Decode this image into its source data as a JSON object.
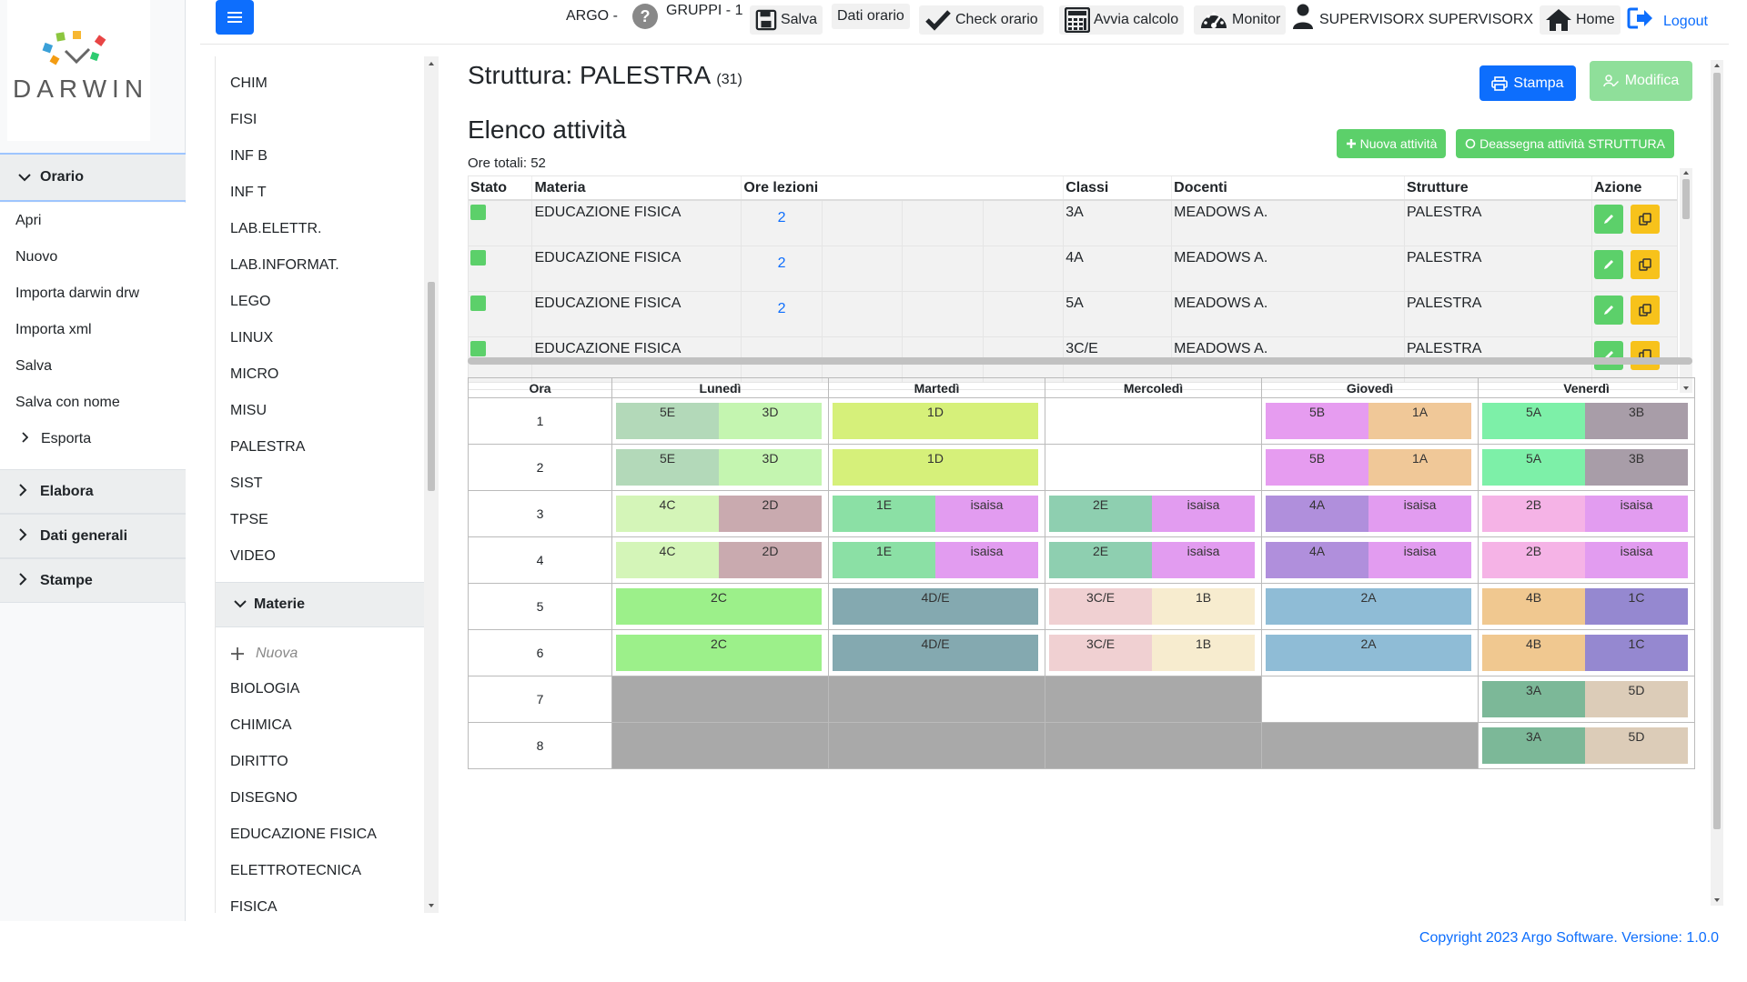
{
  "logo": {
    "text": "DARWIN"
  },
  "sidebar": {
    "sections": [
      {
        "label": "Orario",
        "expanded": true
      },
      {
        "label": "Elabora",
        "expanded": false
      },
      {
        "label": "Dati generali",
        "expanded": false
      },
      {
        "label": "Stampe",
        "expanded": false
      }
    ],
    "orario_items": [
      "Apri",
      "Nuovo",
      "Importa darwin drw",
      "Importa xml",
      "Salva",
      "Salva con nome",
      "Esporta"
    ]
  },
  "topbar": {
    "argo": "ARGO -",
    "gruppi": "GRUPPI - 1",
    "salva": "Salva",
    "dati_orario": "Dati orario",
    "check_orario": "Check orario",
    "avvia_calcolo": "Avvia calcolo",
    "monitor": "Monitor",
    "user": "SUPERVISORX SUPERVISORX",
    "home": "Home",
    "logout": "Logout"
  },
  "strutture_list": [
    "CHIM",
    "FISI",
    "INF B",
    "INF T",
    "LAB.ELETTR.",
    "LAB.INFORMAT.",
    "LEGO",
    "LINUX",
    "MICRO",
    "MISU",
    "PALESTRA",
    "SIST",
    "TPSE",
    "VIDEO"
  ],
  "materie": {
    "header": "Materie",
    "new_label": "Nuova",
    "items": [
      "BIOLOGIA",
      "CHIMICA",
      "DIRITTO",
      "DISEGNO",
      "EDUCAZIONE FISICA",
      "ELETTROTECNICA",
      "FISICA"
    ]
  },
  "main": {
    "title": "Struttura: PALESTRA",
    "title_count": "(31)",
    "stampa": "Stampa",
    "modifica": "Modifica",
    "section_title": "Elenco attività",
    "nuova_attivita": "Nuova attività",
    "deassegna": "Deassegna attività STRUTTURA",
    "ore_totali": "Ore totali: 52"
  },
  "activities": {
    "headers": [
      "Stato",
      "Materia",
      "Ore lezioni",
      "Classi",
      "Docenti",
      "Strutture",
      "Azione"
    ],
    "rows": [
      {
        "materia": "EDUCAZIONE FISICA",
        "ore": "2",
        "classi": "3A",
        "docenti": "MEADOWS A.",
        "strutture": "PALESTRA"
      },
      {
        "materia": "EDUCAZIONE FISICA",
        "ore": "2",
        "classi": "4A",
        "docenti": "MEADOWS A.",
        "strutture": "PALESTRA"
      },
      {
        "materia": "EDUCAZIONE FISICA",
        "ore": "2",
        "classi": "5A",
        "docenti": "MEADOWS A.",
        "strutture": "PALESTRA"
      },
      {
        "materia": "EDUCAZIONE FISICA",
        "ore": "",
        "classi": "3C/E",
        "docenti": "MEADOWS A.",
        "strutture": "PALESTRA"
      }
    ]
  },
  "schedule": {
    "ora_header": "Ora",
    "days": [
      "Lunedì",
      "Martedì",
      "Mercoledì",
      "Giovedì",
      "Venerdì"
    ],
    "rows": [
      {
        "ora": "1",
        "cells": [
          {
            "blocks": [
              {
                "label": "5E",
                "color": "#b3d9b9"
              },
              {
                "label": "3D",
                "color": "#c4f5b0"
              }
            ]
          },
          {
            "blocks": [
              {
                "label": "1D",
                "color": "#d6f07a"
              }
            ]
          },
          {
            "blocks": []
          },
          {
            "blocks": [
              {
                "label": "5B",
                "color": "#e69cf0"
              },
              {
                "label": "1A",
                "color": "#f0c898"
              }
            ]
          },
          {
            "blocks": [
              {
                "label": "5A",
                "color": "#7df0a8"
              },
              {
                "label": "3B",
                "color": "#a89da8"
              }
            ]
          }
        ]
      },
      {
        "ora": "2",
        "cells": [
          {
            "blocks": [
              {
                "label": "5E",
                "color": "#b3d9b9"
              },
              {
                "label": "3D",
                "color": "#c4f5b0"
              }
            ]
          },
          {
            "blocks": [
              {
                "label": "1D",
                "color": "#d6f07a"
              }
            ]
          },
          {
            "blocks": []
          },
          {
            "blocks": [
              {
                "label": "5B",
                "color": "#e69cf0"
              },
              {
                "label": "1A",
                "color": "#f0c898"
              }
            ]
          },
          {
            "blocks": [
              {
                "label": "5A",
                "color": "#7df0a8"
              },
              {
                "label": "3B",
                "color": "#a89da8"
              }
            ]
          }
        ]
      },
      {
        "ora": "3",
        "cells": [
          {
            "blocks": [
              {
                "label": "4C",
                "color": "#d4f5b8"
              },
              {
                "label": "2D",
                "color": "#c9aaaf"
              }
            ]
          },
          {
            "blocks": [
              {
                "label": "1E",
                "color": "#8be0a5"
              },
              {
                "label": "isaisa",
                "color": "#e29cf0"
              }
            ]
          },
          {
            "blocks": [
              {
                "label": "2E",
                "color": "#8ecfb0"
              },
              {
                "label": "isaisa",
                "color": "#e29cf0"
              }
            ]
          },
          {
            "blocks": [
              {
                "label": "4A",
                "color": "#b08fdc"
              },
              {
                "label": "isaisa",
                "color": "#e29cf0"
              }
            ]
          },
          {
            "blocks": [
              {
                "label": "2B",
                "color": "#f5b3e6"
              },
              {
                "label": "isaisa",
                "color": "#e29cf0"
              }
            ]
          }
        ]
      },
      {
        "ora": "4",
        "cells": [
          {
            "blocks": [
              {
                "label": "4C",
                "color": "#d4f5b8"
              },
              {
                "label": "2D",
                "color": "#c9aaaf"
              }
            ]
          },
          {
            "blocks": [
              {
                "label": "1E",
                "color": "#8be0a5"
              },
              {
                "label": "isaisa",
                "color": "#e29cf0"
              }
            ]
          },
          {
            "blocks": [
              {
                "label": "2E",
                "color": "#8ecfb0"
              },
              {
                "label": "isaisa",
                "color": "#e29cf0"
              }
            ]
          },
          {
            "blocks": [
              {
                "label": "4A",
                "color": "#b08fdc"
              },
              {
                "label": "isaisa",
                "color": "#e29cf0"
              }
            ]
          },
          {
            "blocks": [
              {
                "label": "2B",
                "color": "#f5b3e6"
              },
              {
                "label": "isaisa",
                "color": "#e29cf0"
              }
            ]
          }
        ]
      },
      {
        "ora": "5",
        "cells": [
          {
            "blocks": [
              {
                "label": "2C",
                "color": "#9cf08a"
              }
            ]
          },
          {
            "blocks": [
              {
                "label": "4D/E",
                "color": "#84a9b0"
              }
            ]
          },
          {
            "blocks": [
              {
                "label": "3C/E",
                "color": "#f0d0d2"
              },
              {
                "label": "1B",
                "color": "#f7eccf"
              }
            ]
          },
          {
            "blocks": [
              {
                "label": "2A",
                "color": "#8fbcd6"
              }
            ]
          },
          {
            "blocks": [
              {
                "label": "4B",
                "color": "#f0c890"
              },
              {
                "label": "1C",
                "color": "#9588d0"
              }
            ]
          }
        ]
      },
      {
        "ora": "6",
        "cells": [
          {
            "blocks": [
              {
                "label": "2C",
                "color": "#9cf08a"
              }
            ]
          },
          {
            "blocks": [
              {
                "label": "4D/E",
                "color": "#84a9b0"
              }
            ]
          },
          {
            "blocks": [
              {
                "label": "3C/E",
                "color": "#f0d0d2"
              },
              {
                "label": "1B",
                "color": "#f7eccf"
              }
            ]
          },
          {
            "blocks": [
              {
                "label": "2A",
                "color": "#8fbcd6"
              }
            ]
          },
          {
            "blocks": [
              {
                "label": "4B",
                "color": "#f0c890"
              },
              {
                "label": "1C",
                "color": "#9588d0"
              }
            ]
          }
        ]
      },
      {
        "ora": "7",
        "cells": [
          {
            "gray": true
          },
          {
            "gray": true
          },
          {
            "gray": true
          },
          {
            "blocks": []
          },
          {
            "blocks": [
              {
                "label": "3A",
                "color": "#7cb898"
              },
              {
                "label": "5D",
                "color": "#dcccb8"
              }
            ]
          }
        ]
      },
      {
        "ora": "8",
        "cells": [
          {
            "gray": true
          },
          {
            "gray": true
          },
          {
            "gray": true
          },
          {
            "gray": true
          },
          {
            "blocks": [
              {
                "label": "3A",
                "color": "#7cb898"
              },
              {
                "label": "5D",
                "color": "#dcccb8"
              }
            ]
          }
        ]
      }
    ]
  },
  "footer": {
    "copyright": "Copyright 2023 Argo Software. Versione: 1.0.0"
  },
  "colors": {
    "primary": "#0d6efd",
    "success": "#5cd06a",
    "warning": "#f7c21b",
    "unavailable": "#a9a9a9"
  }
}
